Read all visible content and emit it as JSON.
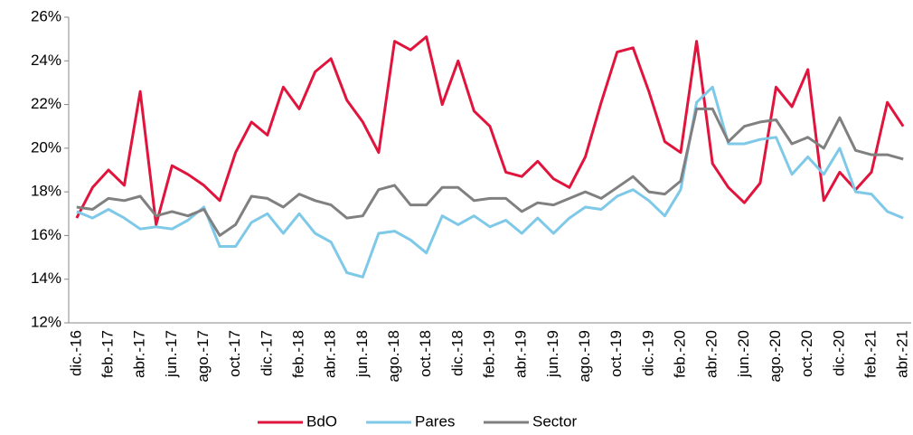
{
  "chart_data": {
    "type": "line",
    "categories": [
      "dic.-16",
      null,
      "feb.-17",
      null,
      "abr.-17",
      null,
      "jun.-17",
      null,
      "ago.-17",
      null,
      "oct.-17",
      null,
      "dic.-17",
      null,
      "feb.-18",
      null,
      "abr.-18",
      null,
      "jun.-18",
      null,
      "ago.-18",
      null,
      "oct.-18",
      null,
      "dic.-18",
      null,
      "feb.-19",
      null,
      "abr.-19",
      null,
      "jun.-19",
      null,
      "ago.-19",
      null,
      "oct.-19",
      null,
      "dic.-19",
      null,
      "feb.-20",
      null,
      "abr.-20",
      null,
      "jun.-20",
      null,
      "ago.-20",
      null,
      "oct.-20",
      null,
      "dic.-20",
      null,
      "feb.-21",
      null,
      "abr.-21"
    ],
    "series": [
      {
        "name": "BdO",
        "color": "#e0143c",
        "values": [
          16.8,
          18.2,
          19.0,
          18.3,
          22.6,
          16.5,
          19.2,
          18.8,
          18.3,
          17.6,
          19.8,
          21.2,
          20.6,
          22.8,
          21.8,
          23.5,
          24.1,
          22.2,
          21.2,
          19.8,
          24.9,
          24.5,
          25.1,
          22.0,
          24.0,
          21.7,
          21.0,
          18.9,
          18.7,
          19.4,
          18.6,
          18.2,
          19.6,
          22.1,
          24.4,
          24.6,
          22.6,
          20.3,
          19.8,
          24.9,
          19.3,
          18.2,
          17.5,
          18.4,
          22.8,
          21.9,
          23.6,
          17.6,
          18.9,
          18.1,
          18.9,
          22.1,
          21.0
        ]
      },
      {
        "name": "Pares",
        "color": "#7ec8e8",
        "values": [
          17.1,
          16.8,
          17.2,
          16.8,
          16.3,
          16.4,
          16.3,
          16.7,
          17.3,
          15.5,
          15.5,
          16.6,
          17.0,
          16.1,
          17.0,
          16.1,
          15.7,
          14.3,
          14.1,
          16.1,
          16.2,
          15.8,
          15.2,
          16.9,
          16.5,
          16.9,
          16.4,
          16.7,
          16.1,
          16.8,
          16.1,
          16.8,
          17.3,
          17.2,
          17.8,
          18.1,
          17.6,
          16.9,
          18.1,
          22.1,
          22.8,
          20.2,
          20.2,
          20.4,
          20.5,
          18.8,
          19.6,
          18.8,
          20.0,
          18.0,
          17.9,
          17.1,
          16.8
        ]
      },
      {
        "name": "Sector",
        "color": "#808080",
        "values": [
          17.3,
          17.2,
          17.7,
          17.6,
          17.8,
          16.9,
          17.1,
          16.9,
          17.2,
          16.0,
          16.5,
          17.8,
          17.7,
          17.3,
          17.9,
          17.6,
          17.4,
          16.8,
          16.9,
          18.1,
          18.3,
          17.4,
          17.4,
          18.2,
          18.2,
          17.6,
          17.7,
          17.7,
          17.1,
          17.5,
          17.4,
          17.7,
          18.0,
          17.7,
          18.2,
          18.7,
          18.0,
          17.9,
          18.5,
          21.8,
          21.8,
          20.3,
          21.0,
          21.2,
          21.3,
          20.2,
          20.5,
          20.0,
          21.4,
          19.9,
          19.7,
          19.7,
          19.5
        ]
      }
    ],
    "ylim": [
      12,
      26
    ],
    "yticks": [
      {
        "value": 12,
        "label": "12%"
      },
      {
        "value": 14,
        "label": "14%"
      },
      {
        "value": 16,
        "label": "16%"
      },
      {
        "value": 18,
        "label": "18%"
      },
      {
        "value": 20,
        "label": "20%"
      },
      {
        "value": 22,
        "label": "22%"
      },
      {
        "value": 24,
        "label": "24%"
      },
      {
        "value": 26,
        "label": "26%"
      }
    ],
    "grid": false,
    "legend": "bottom"
  }
}
